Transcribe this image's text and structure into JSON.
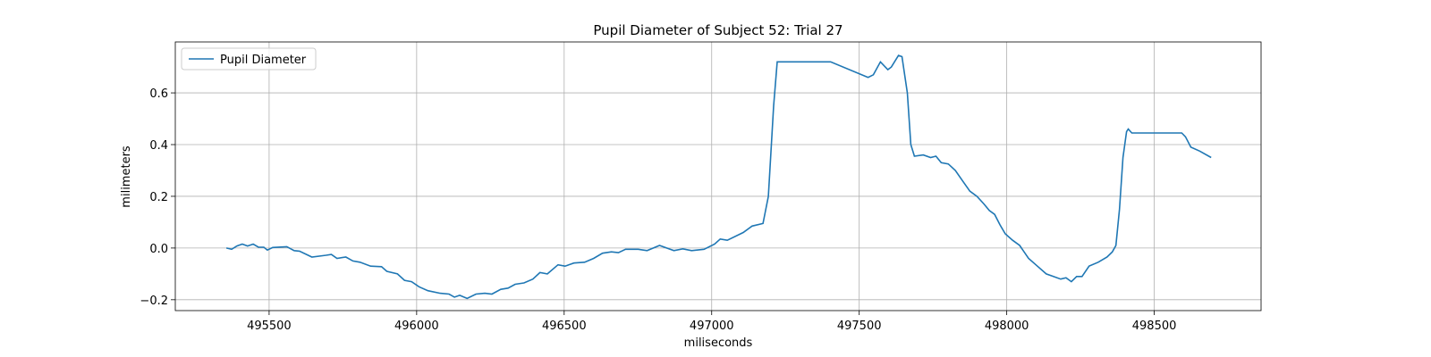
{
  "chart_data": {
    "type": "line",
    "title": "Pupil Diameter of Subject 52: Trial 27",
    "x_label": "miliseconds",
    "y_label": "milimeters",
    "x": [
      495355,
      495373,
      495391,
      495409,
      495427,
      495446,
      495464,
      495482,
      495494,
      495512,
      495560,
      495585,
      495603,
      495645,
      495693,
      495711,
      495730,
      495760,
      495784,
      495808,
      495844,
      495881,
      495899,
      495935,
      495959,
      495983,
      496008,
      496038,
      496080,
      496110,
      496128,
      496146,
      496171,
      496201,
      496231,
      496255,
      496285,
      496310,
      496334,
      496364,
      496394,
      496418,
      496443,
      496479,
      496503,
      496533,
      496569,
      496600,
      496630,
      496660,
      496684,
      496708,
      496751,
      496781,
      496823,
      496872,
      496902,
      496932,
      496974,
      497010,
      497029,
      497053,
      497107,
      497137,
      497174,
      497192,
      497210,
      497222,
      497234,
      497258,
      497403,
      497530,
      497548,
      497572,
      497597,
      497609,
      497633,
      497645,
      497663,
      497675,
      497687,
      497717,
      497742,
      497760,
      497778,
      497802,
      497826,
      497850,
      497875,
      497899,
      497923,
      497941,
      497959,
      497977,
      497995,
      498020,
      498044,
      498074,
      498104,
      498134,
      498158,
      498183,
      498201,
      498219,
      498237,
      498255,
      498279,
      498310,
      498340,
      498358,
      498370,
      498382,
      498394,
      498406,
      498412,
      498424,
      498593,
      498606,
      498624,
      498654,
      498693
    ],
    "series": [
      {
        "name": "Pupil Diameter",
        "color": "#1f77b4",
        "values": [
          0.0,
          -0.005,
          0.008,
          0.015,
          0.008,
          0.015,
          0.003,
          0.003,
          -0.008,
          0.002,
          0.005,
          -0.01,
          -0.012,
          -0.035,
          -0.028,
          -0.025,
          -0.04,
          -0.035,
          -0.05,
          -0.055,
          -0.07,
          -0.072,
          -0.09,
          -0.1,
          -0.125,
          -0.13,
          -0.15,
          -0.165,
          -0.175,
          -0.178,
          -0.19,
          -0.183,
          -0.195,
          -0.178,
          -0.175,
          -0.178,
          -0.16,
          -0.155,
          -0.14,
          -0.135,
          -0.12,
          -0.095,
          -0.1,
          -0.065,
          -0.07,
          -0.058,
          -0.055,
          -0.04,
          -0.02,
          -0.015,
          -0.018,
          -0.005,
          -0.005,
          -0.01,
          0.01,
          -0.01,
          -0.003,
          -0.01,
          -0.005,
          0.015,
          0.035,
          0.03,
          0.06,
          0.085,
          0.095,
          0.2,
          0.55,
          0.72,
          0.72,
          0.72,
          0.72,
          0.66,
          0.67,
          0.72,
          0.69,
          0.7,
          0.745,
          0.74,
          0.6,
          0.4,
          0.355,
          0.36,
          0.35,
          0.355,
          0.33,
          0.325,
          0.3,
          0.26,
          0.22,
          0.2,
          0.17,
          0.145,
          0.13,
          0.09,
          0.055,
          0.03,
          0.01,
          -0.04,
          -0.07,
          -0.1,
          -0.11,
          -0.12,
          -0.115,
          -0.13,
          -0.11,
          -0.11,
          -0.07,
          -0.055,
          -0.035,
          -0.015,
          0.01,
          0.15,
          0.35,
          0.45,
          0.46,
          0.445,
          0.445,
          0.43,
          0.39,
          0.375,
          0.35
        ]
      }
    ],
    "xlim": [
      495182,
      498862
    ],
    "ylim": [
      -0.242,
      0.797
    ],
    "xticks": [
      495500,
      496000,
      496500,
      497000,
      497500,
      498000,
      498500
    ],
    "yticks": [
      {
        "value": -0.2,
        "label": "−0.2"
      },
      {
        "value": 0,
        "label": "0.0"
      },
      0.2,
      0.4,
      0.6
    ],
    "grid": true,
    "legend": "upper left"
  }
}
